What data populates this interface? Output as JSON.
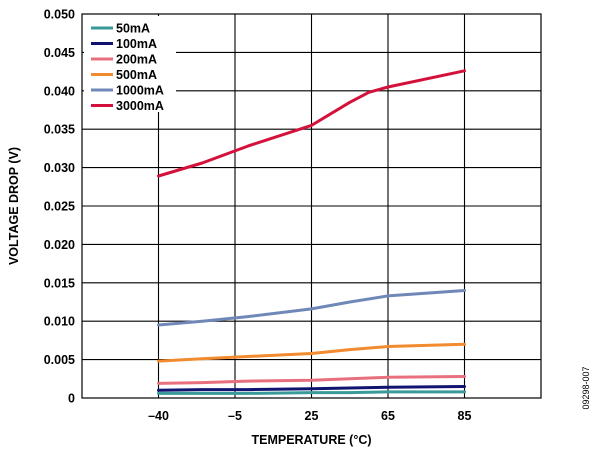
{
  "chart_data": {
    "type": "line",
    "xlabel": "TEMPERATURE (°C)",
    "ylabel": "VOLTAGE DROP (V)",
    "x_tick_labels": [
      "–40",
      "–5",
      "25",
      "65",
      "85"
    ],
    "y_tick_labels": [
      "0",
      "0.005",
      "0.010",
      "0.015",
      "0.020",
      "0.025",
      "0.030",
      "0.035",
      "0.040",
      "0.045",
      "0.050"
    ],
    "ylim": [
      0,
      0.05
    ],
    "grid": true,
    "legend_position": "top-left",
    "series": [
      {
        "name": "50mA",
        "color": "#3a9a9a",
        "points": [
          [
            -40,
            0.0006
          ],
          [
            -20,
            0.0006
          ],
          [
            0,
            0.0006
          ],
          [
            25,
            0.0007
          ],
          [
            45,
            0.0007
          ],
          [
            65,
            0.0008
          ],
          [
            85,
            0.0008
          ]
        ]
      },
      {
        "name": "100mA",
        "color": "#101470",
        "points": [
          [
            -40,
            0.001
          ],
          [
            -20,
            0.0011
          ],
          [
            0,
            0.0011
          ],
          [
            25,
            0.0012
          ],
          [
            45,
            0.0013
          ],
          [
            65,
            0.0014
          ],
          [
            85,
            0.0015
          ]
        ]
      },
      {
        "name": "200mA",
        "color": "#e8707e",
        "points": [
          [
            -40,
            0.0019
          ],
          [
            -20,
            0.002
          ],
          [
            0,
            0.0022
          ],
          [
            25,
            0.0023
          ],
          [
            45,
            0.0025
          ],
          [
            65,
            0.0027
          ],
          [
            85,
            0.0028
          ]
        ]
      },
      {
        "name": "500mA",
        "color": "#f28a30",
        "points": [
          [
            -40,
            0.0048
          ],
          [
            -20,
            0.0051
          ],
          [
            0,
            0.0054
          ],
          [
            25,
            0.0058
          ],
          [
            45,
            0.0063
          ],
          [
            65,
            0.0067
          ],
          [
            85,
            0.007
          ]
        ]
      },
      {
        "name": "1000mA",
        "color": "#7088b8",
        "points": [
          [
            -40,
            0.0095
          ],
          [
            -20,
            0.01
          ],
          [
            0,
            0.0106
          ],
          [
            25,
            0.0116
          ],
          [
            45,
            0.0125
          ],
          [
            65,
            0.0133
          ],
          [
            85,
            0.014
          ]
        ]
      },
      {
        "name": "3000mA",
        "color": "#d4113a",
        "points": [
          [
            -40,
            0.0289
          ],
          [
            -20,
            0.0306
          ],
          [
            0,
            0.0328
          ],
          [
            25,
            0.0355
          ],
          [
            45,
            0.0385
          ],
          [
            55,
            0.0398
          ],
          [
            65,
            0.0405
          ],
          [
            85,
            0.0426
          ]
        ]
      }
    ]
  },
  "figure_code": "09298-007"
}
